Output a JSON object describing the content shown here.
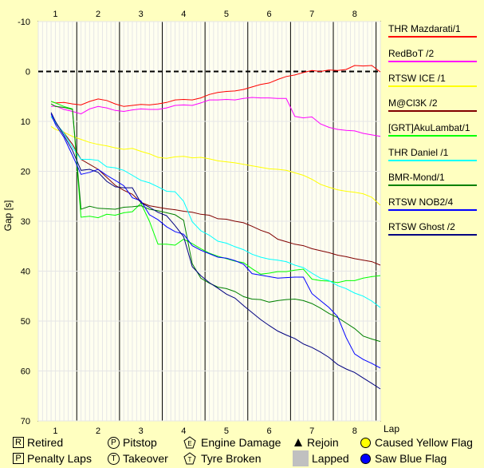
{
  "chart_data": {
    "type": "line",
    "xlabel": "Lap",
    "ylabel": "Gap [s]",
    "ylim": [
      70,
      -10
    ],
    "yticks": [
      -10,
      0,
      10,
      20,
      30,
      40,
      50,
      60,
      70
    ],
    "laps": [
      1,
      2,
      3,
      4,
      5,
      6,
      7,
      8
    ],
    "x_range": [
      0.6,
      8.6
    ],
    "grid": true,
    "legend_position": "right",
    "x": [
      0.9,
      1.0,
      1.2,
      1.4,
      1.6,
      1.8,
      2.0,
      2.2,
      2.4,
      2.6,
      2.8,
      3.0,
      3.2,
      3.4,
      3.6,
      3.8,
      4.0,
      4.2,
      4.4,
      4.6,
      4.8,
      5.0,
      5.2,
      5.4,
      5.6,
      5.8,
      6.0,
      6.2,
      6.4,
      6.6,
      6.8,
      7.0,
      7.2,
      7.4,
      7.6,
      7.8,
      8.0,
      8.2,
      8.4,
      8.6
    ],
    "series": [
      {
        "name": "THR Mazdarati/1",
        "color": "#ff0000",
        "values": [
          6,
          6.3,
          6.2,
          6.5,
          6.7,
          6,
          5.5,
          5.8,
          6.5,
          7,
          6.8,
          6.6,
          6.7,
          6.5,
          6.2,
          5.7,
          5.6,
          5.7,
          5.3,
          4.6,
          4.2,
          4,
          3.9,
          3.6,
          3.1,
          2.6,
          2.3,
          1.6,
          1,
          0.7,
          0.2,
          -0.2,
          0,
          -0.3,
          -0.2,
          -0.4,
          -1.2,
          -1.1,
          -1.2,
          0.1
        ]
      },
      {
        "name": "RedBoT /2",
        "color": "#ff00ff",
        "values": [
          7,
          6.9,
          7.6,
          8,
          8.5,
          7.5,
          7,
          7.3,
          7.8,
          8,
          7.7,
          7.5,
          7.6,
          7.6,
          7.3,
          6.8,
          6.7,
          6.8,
          6.3,
          5.7,
          5.7,
          5.6,
          5.7,
          5.4,
          5.2,
          5.3,
          5.3,
          5.4,
          5.4,
          9,
          9.3,
          9.1,
          10.5,
          11.2,
          11.6,
          11.8,
          11.9,
          12.4,
          12.7,
          13
        ]
      },
      {
        "name": "RTSW ICE /1",
        "color": "#ffff00",
        "values": [
          11,
          11.6,
          12.2,
          13,
          13.6,
          14.2,
          14.6,
          14.9,
          15.3,
          15.6,
          15.4,
          16,
          16.5,
          17.2,
          17.4,
          17.1,
          17,
          17.3,
          17.2,
          17.5,
          17.9,
          18.1,
          18.3,
          18.6,
          18.9,
          19.2,
          19.5,
          19.6,
          19.8,
          20.3,
          20.8,
          21.6,
          22.6,
          23.2,
          23.7,
          24,
          24.2,
          24.5,
          25.2,
          26.8
        ]
      },
      {
        "name": "M@Cl3K /2",
        "color": "#800000",
        "values": [
          9,
          10.3,
          12.3,
          14.6,
          17.6,
          18.6,
          19.6,
          21.2,
          22.8,
          23.8,
          24.6,
          26.2,
          26.9,
          27.2,
          27.5,
          27.7,
          28,
          28.2,
          28.6,
          28.8,
          29.5,
          29.6,
          30,
          30.3,
          31,
          31.8,
          32.4,
          33.6,
          34.1,
          34.6,
          34.9,
          35.5,
          35.9,
          36.3,
          36.8,
          37.1,
          37.5,
          37.8,
          38.1,
          38.8
        ]
      },
      {
        "name": "[GRT]AkuLambat/1",
        "color": "#00ff00",
        "values": [
          6,
          6.3,
          7,
          7.5,
          29.2,
          29,
          29.3,
          28.6,
          28.8,
          28.3,
          28.1,
          26.4,
          30,
          34.6,
          34.6,
          34.8,
          33.6,
          34.5,
          35.5,
          36.4,
          37,
          37.5,
          38,
          38.3,
          39.5,
          40.6,
          40.4,
          40.1,
          40.1,
          39.8,
          39.6,
          41.6,
          41.9,
          42,
          42.3,
          41.9,
          41.9,
          41.4,
          41.1,
          40.9
        ]
      },
      {
        "name": "THR Daniel /1",
        "color": "#00ffff",
        "values": [
          9,
          10.2,
          12.4,
          15.2,
          17.6,
          17.6,
          17.8,
          19.1,
          19.3,
          19.8,
          20.8,
          21.8,
          22.3,
          23.1,
          24,
          24.1,
          26,
          30.1,
          31.9,
          32.8,
          34,
          34.4,
          35.1,
          35.7,
          36.6,
          37.2,
          37.6,
          37.8,
          38.1,
          38.8,
          39.3,
          40.4,
          41.4,
          41.9,
          42.9,
          43.5,
          44.4,
          45,
          46,
          47.3
        ]
      },
      {
        "name": "BMR-Mond/1",
        "color": "#008000",
        "values": [
          6.5,
          7,
          7.2,
          7.6,
          27.6,
          27,
          27.4,
          27.5,
          27.6,
          27.2,
          27.1,
          26.9,
          27.6,
          27.9,
          28.3,
          28.7,
          29.8,
          38.5,
          41.4,
          42.4,
          43.2,
          43.5,
          44.1,
          45.1,
          45.6,
          45.7,
          46.2,
          45.9,
          45.7,
          45.6,
          45.9,
          46.5,
          47.4,
          48.5,
          49.3,
          50.4,
          51.5,
          53,
          53.6,
          54.1
        ]
      },
      {
        "name": "RTSW NOB2/4",
        "color": "#0000ff",
        "values": [
          8.5,
          10.6,
          13.2,
          16.8,
          20.6,
          20.2,
          19.6,
          20.8,
          21.8,
          22.9,
          25.3,
          25.9,
          28.7,
          29.7,
          31.1,
          32.1,
          32.6,
          34.9,
          35.8,
          36.5,
          37.2,
          37.4,
          37.9,
          38.6,
          40.5,
          40.8,
          41.1,
          41.4,
          41.3,
          41.2,
          41.2,
          44.5,
          45.9,
          47.3,
          49.1,
          53.3,
          56.6,
          57.7,
          58.5,
          59.4
        ]
      },
      {
        "name": "RTSW Ghost /2",
        "color": "#000080",
        "values": [
          8.2,
          10,
          12.8,
          15.8,
          19.8,
          19.6,
          20.2,
          22,
          23.1,
          23.3,
          23.3,
          26.3,
          27.2,
          28.2,
          28.9,
          30.9,
          33.1,
          39.1,
          40.9,
          42.3,
          43.4,
          44.6,
          45.4,
          46.9,
          48.3,
          49.7,
          50.9,
          52,
          52.8,
          53.5,
          54.6,
          55.3,
          56.2,
          57.3,
          58.7,
          59.6,
          60.3,
          61.4,
          62.5,
          63.6
        ]
      }
    ]
  },
  "legend_footer": {
    "retired": {
      "symbol": "R",
      "label": "Retired"
    },
    "penalty": {
      "symbol": "P",
      "label": "Penalty Laps"
    },
    "pitstop": {
      "symbol": "P",
      "label": "Pitstop"
    },
    "takeover": {
      "symbol": "T",
      "label": "Takeover"
    },
    "engine": {
      "symbol": "E",
      "label": "Engine Damage"
    },
    "tyre": {
      "symbol": "T",
      "label": "Tyre Broken"
    },
    "rejoin": {
      "label": "Rejoin"
    },
    "lapped": {
      "label": "Lapped"
    },
    "yellow": {
      "label": "Caused Yellow Flag",
      "color": "#ffff00"
    },
    "blue": {
      "label": "Saw Blue Flag",
      "color": "#0000ff"
    }
  }
}
